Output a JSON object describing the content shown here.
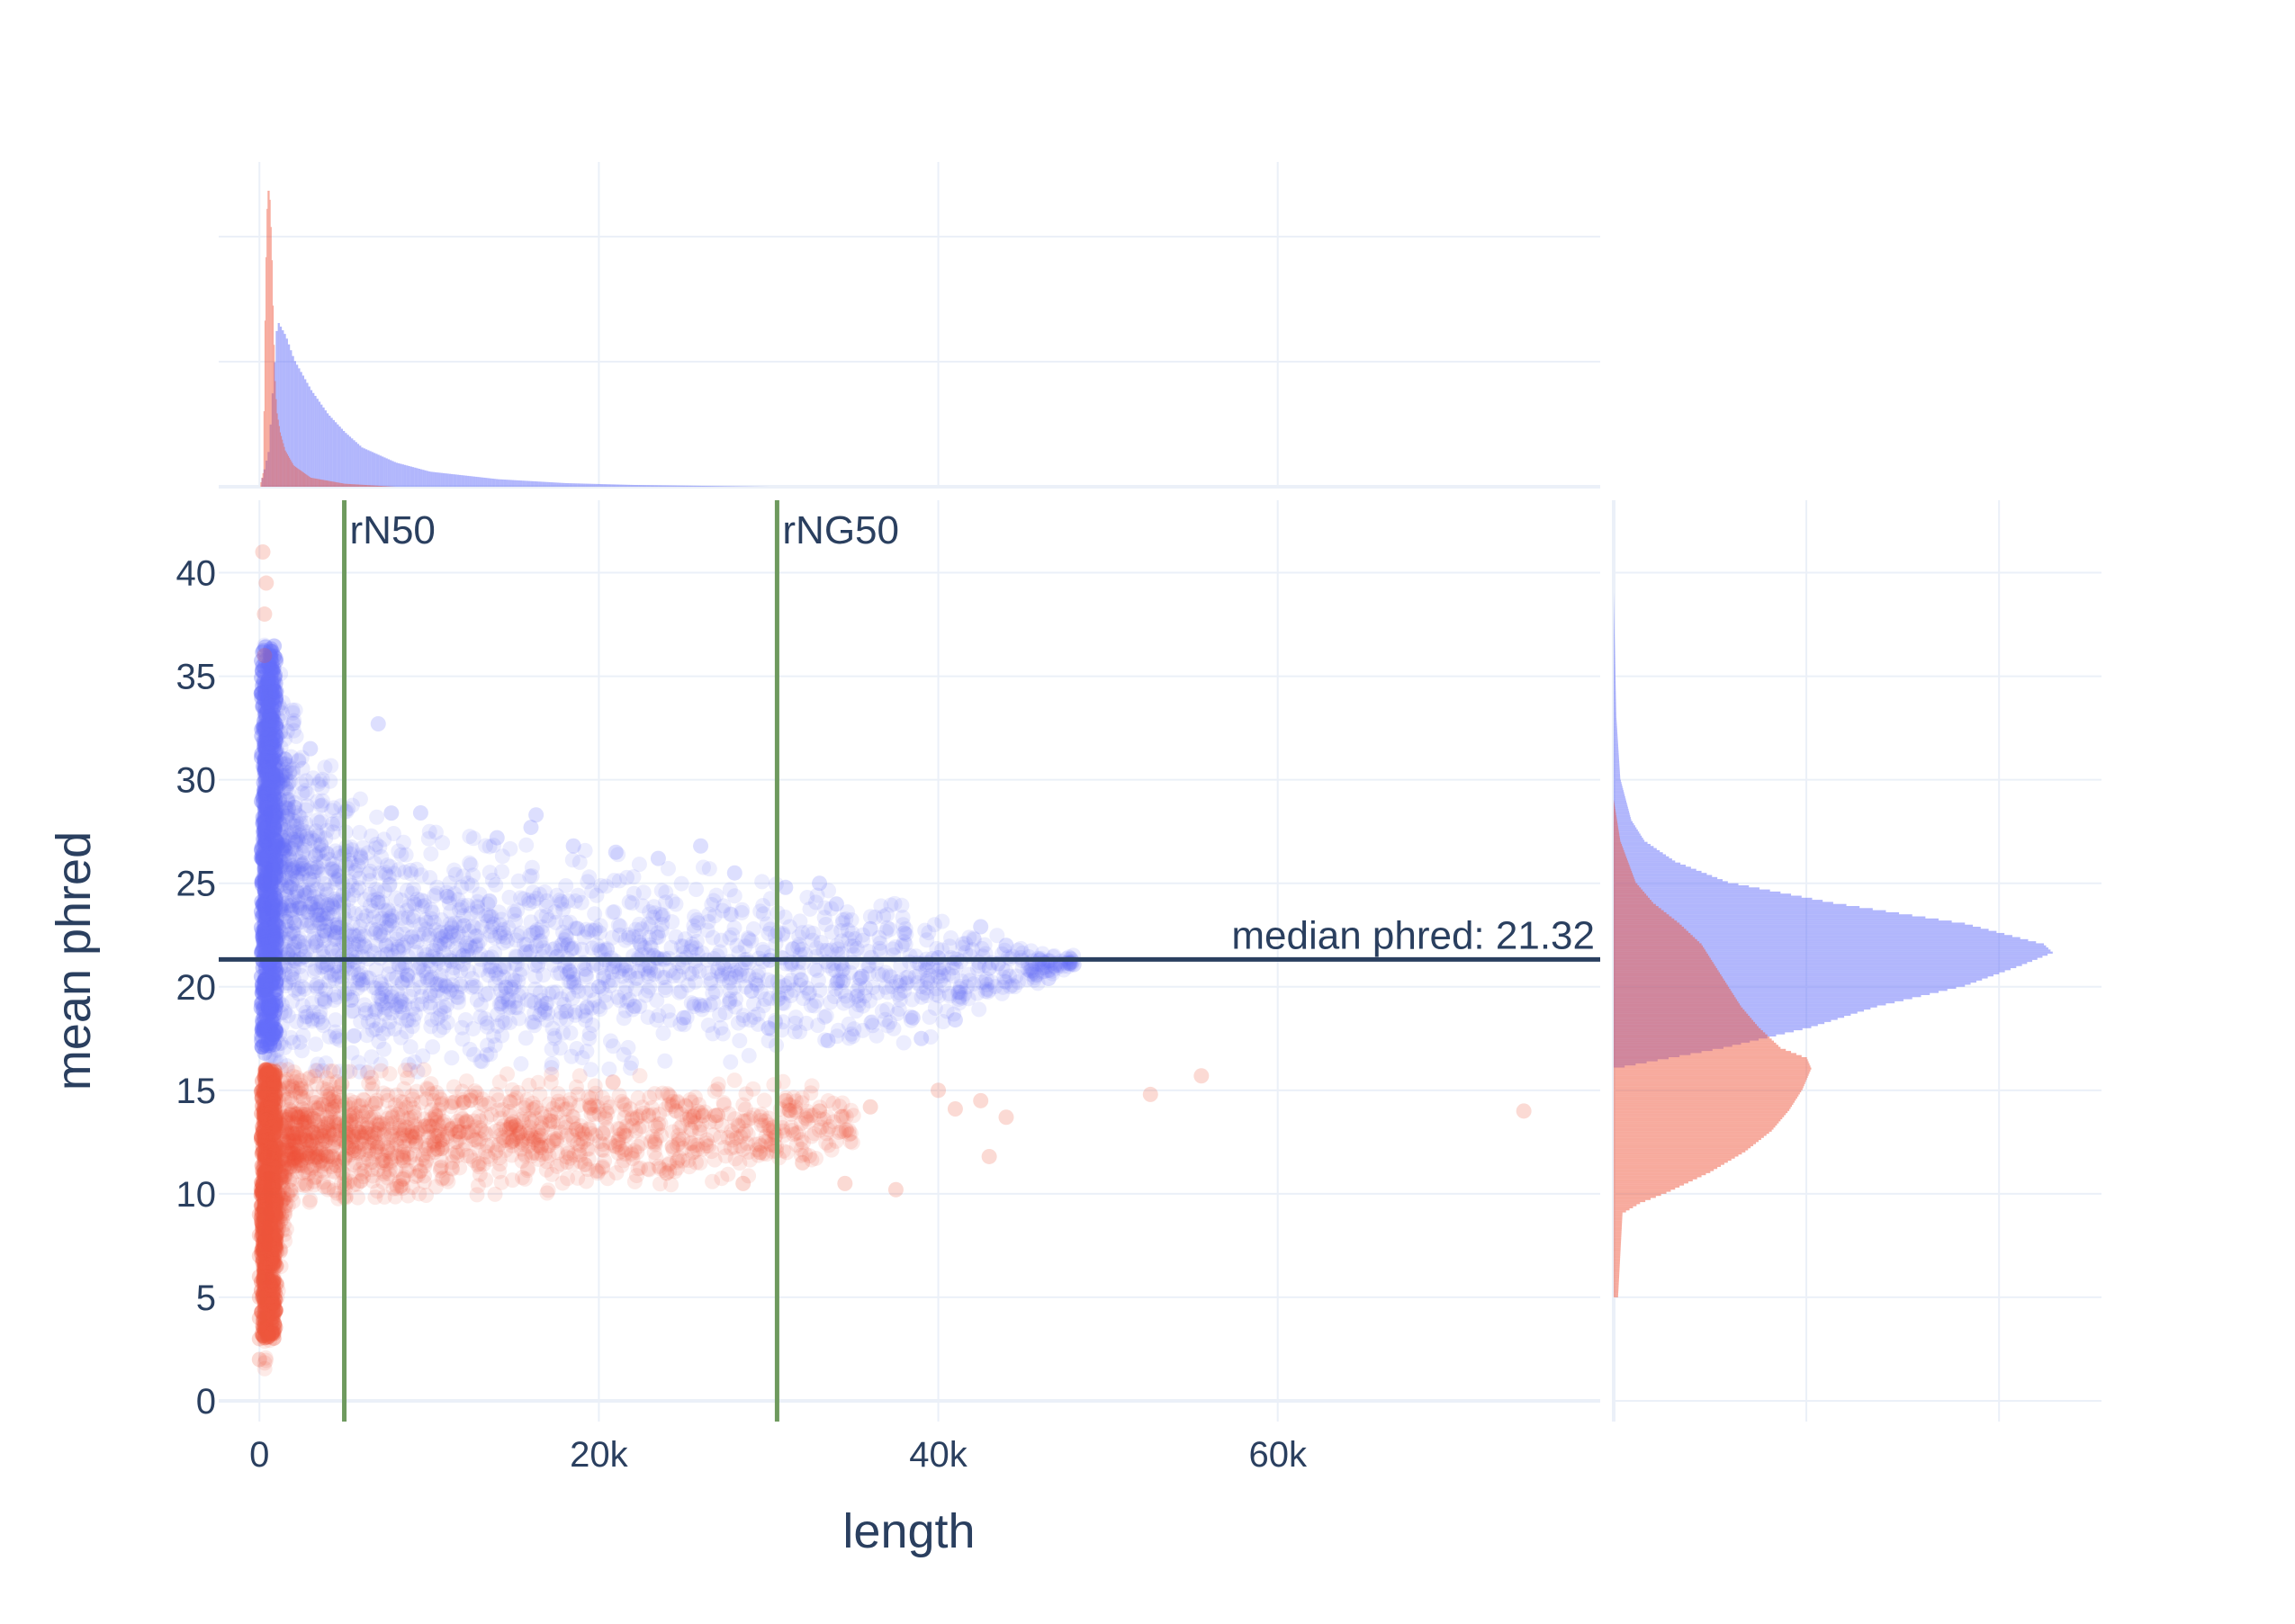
{
  "chart_data": {
    "type": "scatter",
    "layout": "scatter with marginal histograms (top: length, right: mean phred)",
    "xlabel": "length",
    "ylabel": "mean phred",
    "xlim": [
      -2400,
      79000
    ],
    "ylim": [
      -1.0,
      43.5
    ],
    "x_ticks": [
      {
        "value": 0,
        "label": "0"
      },
      {
        "value": 20000,
        "label": "20k"
      },
      {
        "value": 40000,
        "label": "40k"
      },
      {
        "value": 60000,
        "label": "60k"
      }
    ],
    "y_ticks": [
      0,
      5,
      10,
      15,
      20,
      25,
      30,
      35,
      40
    ],
    "grid": true,
    "legend": "none",
    "colors": {
      "pass": "#636efa",
      "fail": "#ef553b",
      "ref_vertical": "#6e9a5e",
      "ref_horizontal": "#2a3f5f",
      "grid": "#ebf0f8",
      "text": "#2a3f5f"
    },
    "series": [
      {
        "color": "#636efa",
        "opacity": 0.12,
        "condition": "mean phred >= ~16",
        "density_envelope": {
          "x": [
            300,
            2000,
            5000,
            10000,
            15000,
            20000,
            25000,
            30000,
            35000,
            40000,
            45000,
            48000
          ],
          "y_max": [
            36.5,
            34.0,
            29.5,
            27.5,
            27.0,
            26.5,
            26.0,
            25.0,
            24.5,
            23.5,
            22.5,
            21.5
          ],
          "y_min": [
            16.8,
            16.0,
            15.9,
            15.9,
            16.0,
            16.0,
            16.2,
            16.5,
            17.0,
            17.5,
            19.5,
            21.0
          ]
        },
        "points": [
          [
            300,
            34.0
          ],
          [
            800,
            32.0
          ],
          [
            1500,
            31.0
          ],
          [
            3000,
            31.5
          ],
          [
            7000,
            32.7
          ],
          [
            9500,
            28.4
          ],
          [
            14000,
            27.2
          ],
          [
            16000,
            27.7
          ],
          [
            16300,
            28.3
          ],
          [
            18500,
            26.8
          ],
          [
            21000,
            26.5
          ],
          [
            23500,
            26.2
          ],
          [
            26000,
            26.8
          ],
          [
            28000,
            25.5
          ],
          [
            31000,
            24.8
          ],
          [
            33000,
            25.0
          ],
          [
            34000,
            24.0
          ],
          [
            36000,
            22.8
          ],
          [
            38000,
            22.6
          ],
          [
            40000,
            21.4
          ],
          [
            42500,
            22.9
          ],
          [
            44000,
            22.0
          ],
          [
            46000,
            21.3
          ],
          [
            46500,
            20.4
          ],
          [
            43000,
            20.9
          ],
          [
            38500,
            18.5
          ],
          [
            39000,
            17.5
          ],
          [
            41000,
            18.4
          ],
          [
            33500,
            17.4
          ],
          [
            35500,
            20.5
          ],
          [
            29000,
            19.8
          ],
          [
            30000,
            18.0
          ],
          [
            12000,
            21.5
          ],
          [
            20000,
            20.0
          ],
          [
            25000,
            18.5
          ]
        ]
      },
      {
        "color": "#ef553b",
        "opacity": 0.12,
        "condition": "mean phred < ~16",
        "density_envelope": {
          "x": [
            300,
            2000,
            5000,
            10000,
            15000,
            20000,
            25000,
            30000,
            35000
          ],
          "y_max": [
            16.0,
            16.0,
            15.9,
            16.0,
            15.9,
            15.8,
            15.6,
            15.5,
            15.0
          ],
          "y_min": [
            1.5,
            9.5,
            9.8,
            9.9,
            10.0,
            10.1,
            10.4,
            10.8,
            11.5
          ]
        },
        "points": [
          [
            0,
            2.0
          ],
          [
            0,
            3.0
          ],
          [
            0,
            4.0
          ],
          [
            0,
            5.0
          ],
          [
            0,
            6.0
          ],
          [
            0,
            7.0
          ],
          [
            0,
            8.0
          ],
          [
            0,
            9.0
          ],
          [
            300,
            36.0
          ],
          [
            300,
            38.0
          ],
          [
            400,
            39.5
          ],
          [
            200,
            41.0
          ],
          [
            24000,
            11.0
          ],
          [
            27000,
            13.8
          ],
          [
            28500,
            10.5
          ],
          [
            29500,
            12.0
          ],
          [
            31000,
            14.5
          ],
          [
            32000,
            11.5
          ],
          [
            33000,
            14.0
          ],
          [
            34500,
            10.5
          ],
          [
            36000,
            14.2
          ],
          [
            37500,
            10.2
          ],
          [
            40000,
            15.0
          ],
          [
            41000,
            14.1
          ],
          [
            42500,
            14.5
          ],
          [
            43000,
            11.8
          ],
          [
            44000,
            13.7
          ],
          [
            52500,
            14.8
          ],
          [
            55500,
            15.7
          ],
          [
            74500,
            14.0
          ]
        ]
      }
    ],
    "reference_lines": [
      {
        "orientation": "vertical",
        "value": 5000,
        "label": "rN50",
        "color": "#6e9a5e"
      },
      {
        "orientation": "vertical",
        "value": 30500,
        "label": "rNG50",
        "color": "#6e9a5e"
      },
      {
        "orientation": "horizontal",
        "value": 21.32,
        "label": "median phred: 21.32",
        "color": "#2a3f5f"
      }
    ],
    "marginal_x": {
      "type": "histogram",
      "y_gridlines": 2,
      "series": [
        {
          "color": "#636efa",
          "opacity": 0.5,
          "x": [
            0,
            500,
            1000,
            1500,
            2000,
            3000,
            4000,
            5000,
            6000,
            8000,
            10000,
            14000,
            18000,
            22000,
            26000,
            30000
          ],
          "density": [
            0.0,
            0.12,
            0.55,
            0.5,
            0.42,
            0.32,
            0.24,
            0.18,
            0.13,
            0.08,
            0.05,
            0.025,
            0.012,
            0.006,
            0.003,
            0.0
          ]
        },
        {
          "color": "#ef553b",
          "opacity": 0.5,
          "x": [
            0,
            200,
            300,
            400,
            500,
            600,
            700,
            800,
            900,
            1000,
            1200,
            1500,
            2000,
            3000,
            5000,
            8000
          ],
          "density": [
            0.0,
            0.05,
            0.55,
            0.9,
            1.0,
            0.95,
            0.8,
            0.55,
            0.35,
            0.25,
            0.18,
            0.12,
            0.07,
            0.03,
            0.01,
            0.0
          ]
        }
      ]
    },
    "marginal_y": {
      "type": "histogram",
      "x_gridlines": 2,
      "series": [
        {
          "color": "#636efa",
          "opacity": 0.5,
          "y": [
            16.0,
            17.0,
            18.0,
            19.0,
            20.0,
            21.0,
            21.6,
            22.0,
            23.0,
            24.0,
            25.0,
            26.0,
            27.0,
            28.0,
            30.0,
            33.0,
            36.0,
            39.0
          ],
          "density": [
            0.0,
            0.25,
            0.45,
            0.6,
            0.8,
            0.93,
            1.0,
            0.98,
            0.8,
            0.5,
            0.26,
            0.14,
            0.07,
            0.04,
            0.015,
            0.006,
            0.003,
            0.0
          ]
        },
        {
          "color": "#ef553b",
          "opacity": 0.5,
          "y": [
            5.0,
            9.0,
            9.5,
            10.0,
            11.0,
            12.0,
            13.0,
            14.0,
            15.0,
            16.0,
            16.5,
            17.0,
            18.0,
            19.0,
            20.0,
            21.0,
            22.0,
            23.0,
            24.0,
            25.0,
            27.0,
            29.0
          ],
          "density": [
            0.01,
            0.02,
            0.06,
            0.12,
            0.22,
            0.3,
            0.36,
            0.4,
            0.43,
            0.45,
            0.44,
            0.38,
            0.33,
            0.29,
            0.26,
            0.23,
            0.2,
            0.15,
            0.09,
            0.05,
            0.015,
            0.0
          ]
        }
      ]
    }
  }
}
